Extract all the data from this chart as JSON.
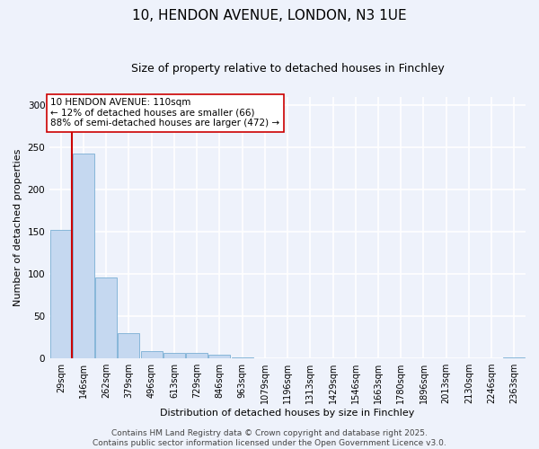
{
  "title": "10, HENDON AVENUE, LONDON, N3 1UE",
  "subtitle": "Size of property relative to detached houses in Finchley",
  "xlabel": "Distribution of detached houses by size in Finchley",
  "ylabel": "Number of detached properties",
  "bar_color": "#c5d8f0",
  "bar_edge_color": "#7aafd4",
  "background_color": "#eef2fb",
  "grid_color": "#ffffff",
  "vline_color": "#cc0000",
  "vline_x": 0.5,
  "annotation_text": "10 HENDON AVENUE: 110sqm\n← 12% of detached houses are smaller (66)\n88% of semi-detached houses are larger (472) →",
  "annotation_box_color": "#ffffff",
  "annotation_box_edge": "#cc0000",
  "categories": [
    "29sqm",
    "146sqm",
    "262sqm",
    "379sqm",
    "496sqm",
    "613sqm",
    "729sqm",
    "846sqm",
    "963sqm",
    "1079sqm",
    "1196sqm",
    "1313sqm",
    "1429sqm",
    "1546sqm",
    "1663sqm",
    "1780sqm",
    "1896sqm",
    "2013sqm",
    "2130sqm",
    "2246sqm",
    "2363sqm"
  ],
  "values": [
    152,
    243,
    96,
    30,
    9,
    7,
    7,
    4,
    1,
    0,
    0,
    0,
    0,
    0,
    0,
    0,
    0,
    0,
    0,
    0,
    1
  ],
  "ylim": [
    0,
    310
  ],
  "yticks": [
    0,
    50,
    100,
    150,
    200,
    250,
    300
  ],
  "footer": "Contains HM Land Registry data © Crown copyright and database right 2025.\nContains public sector information licensed under the Open Government Licence v3.0.",
  "title_fontsize": 11,
  "subtitle_fontsize": 9,
  "axis_fontsize": 8,
  "tick_fontsize": 7,
  "footer_fontsize": 6.5,
  "annot_fontsize": 7.5
}
